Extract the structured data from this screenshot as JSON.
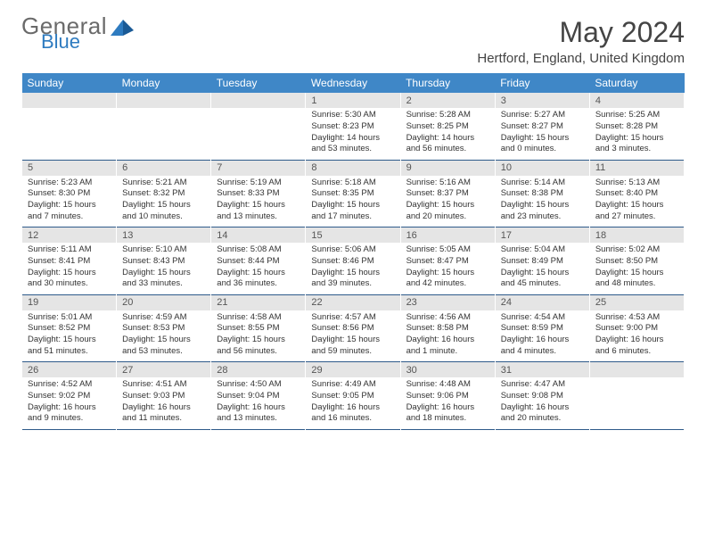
{
  "logo": {
    "word1": "General",
    "word2": "Blue"
  },
  "title": "May 2024",
  "location": "Hertford, England, United Kingdom",
  "colors": {
    "header_bg": "#3f87c7",
    "header_text": "#ffffff",
    "daynum_bg": "#e5e5e5",
    "text": "#333333",
    "logo_gray": "#6a6a6a",
    "logo_blue": "#2e7bc0",
    "rule": "#2e5a8a"
  },
  "weekdays": [
    "Sunday",
    "Monday",
    "Tuesday",
    "Wednesday",
    "Thursday",
    "Friday",
    "Saturday"
  ],
  "weeks": [
    [
      {
        "num": "",
        "sunrise": "",
        "sunset": "",
        "daylight": ""
      },
      {
        "num": "",
        "sunrise": "",
        "sunset": "",
        "daylight": ""
      },
      {
        "num": "",
        "sunrise": "",
        "sunset": "",
        "daylight": ""
      },
      {
        "num": "1",
        "sunrise": "Sunrise: 5:30 AM",
        "sunset": "Sunset: 8:23 PM",
        "daylight": "Daylight: 14 hours and 53 minutes."
      },
      {
        "num": "2",
        "sunrise": "Sunrise: 5:28 AM",
        "sunset": "Sunset: 8:25 PM",
        "daylight": "Daylight: 14 hours and 56 minutes."
      },
      {
        "num": "3",
        "sunrise": "Sunrise: 5:27 AM",
        "sunset": "Sunset: 8:27 PM",
        "daylight": "Daylight: 15 hours and 0 minutes."
      },
      {
        "num": "4",
        "sunrise": "Sunrise: 5:25 AM",
        "sunset": "Sunset: 8:28 PM",
        "daylight": "Daylight: 15 hours and 3 minutes."
      }
    ],
    [
      {
        "num": "5",
        "sunrise": "Sunrise: 5:23 AM",
        "sunset": "Sunset: 8:30 PM",
        "daylight": "Daylight: 15 hours and 7 minutes."
      },
      {
        "num": "6",
        "sunrise": "Sunrise: 5:21 AM",
        "sunset": "Sunset: 8:32 PM",
        "daylight": "Daylight: 15 hours and 10 minutes."
      },
      {
        "num": "7",
        "sunrise": "Sunrise: 5:19 AM",
        "sunset": "Sunset: 8:33 PM",
        "daylight": "Daylight: 15 hours and 13 minutes."
      },
      {
        "num": "8",
        "sunrise": "Sunrise: 5:18 AM",
        "sunset": "Sunset: 8:35 PM",
        "daylight": "Daylight: 15 hours and 17 minutes."
      },
      {
        "num": "9",
        "sunrise": "Sunrise: 5:16 AM",
        "sunset": "Sunset: 8:37 PM",
        "daylight": "Daylight: 15 hours and 20 minutes."
      },
      {
        "num": "10",
        "sunrise": "Sunrise: 5:14 AM",
        "sunset": "Sunset: 8:38 PM",
        "daylight": "Daylight: 15 hours and 23 minutes."
      },
      {
        "num": "11",
        "sunrise": "Sunrise: 5:13 AM",
        "sunset": "Sunset: 8:40 PM",
        "daylight": "Daylight: 15 hours and 27 minutes."
      }
    ],
    [
      {
        "num": "12",
        "sunrise": "Sunrise: 5:11 AM",
        "sunset": "Sunset: 8:41 PM",
        "daylight": "Daylight: 15 hours and 30 minutes."
      },
      {
        "num": "13",
        "sunrise": "Sunrise: 5:10 AM",
        "sunset": "Sunset: 8:43 PM",
        "daylight": "Daylight: 15 hours and 33 minutes."
      },
      {
        "num": "14",
        "sunrise": "Sunrise: 5:08 AM",
        "sunset": "Sunset: 8:44 PM",
        "daylight": "Daylight: 15 hours and 36 minutes."
      },
      {
        "num": "15",
        "sunrise": "Sunrise: 5:06 AM",
        "sunset": "Sunset: 8:46 PM",
        "daylight": "Daylight: 15 hours and 39 minutes."
      },
      {
        "num": "16",
        "sunrise": "Sunrise: 5:05 AM",
        "sunset": "Sunset: 8:47 PM",
        "daylight": "Daylight: 15 hours and 42 minutes."
      },
      {
        "num": "17",
        "sunrise": "Sunrise: 5:04 AM",
        "sunset": "Sunset: 8:49 PM",
        "daylight": "Daylight: 15 hours and 45 minutes."
      },
      {
        "num": "18",
        "sunrise": "Sunrise: 5:02 AM",
        "sunset": "Sunset: 8:50 PM",
        "daylight": "Daylight: 15 hours and 48 minutes."
      }
    ],
    [
      {
        "num": "19",
        "sunrise": "Sunrise: 5:01 AM",
        "sunset": "Sunset: 8:52 PM",
        "daylight": "Daylight: 15 hours and 51 minutes."
      },
      {
        "num": "20",
        "sunrise": "Sunrise: 4:59 AM",
        "sunset": "Sunset: 8:53 PM",
        "daylight": "Daylight: 15 hours and 53 minutes."
      },
      {
        "num": "21",
        "sunrise": "Sunrise: 4:58 AM",
        "sunset": "Sunset: 8:55 PM",
        "daylight": "Daylight: 15 hours and 56 minutes."
      },
      {
        "num": "22",
        "sunrise": "Sunrise: 4:57 AM",
        "sunset": "Sunset: 8:56 PM",
        "daylight": "Daylight: 15 hours and 59 minutes."
      },
      {
        "num": "23",
        "sunrise": "Sunrise: 4:56 AM",
        "sunset": "Sunset: 8:58 PM",
        "daylight": "Daylight: 16 hours and 1 minute."
      },
      {
        "num": "24",
        "sunrise": "Sunrise: 4:54 AM",
        "sunset": "Sunset: 8:59 PM",
        "daylight": "Daylight: 16 hours and 4 minutes."
      },
      {
        "num": "25",
        "sunrise": "Sunrise: 4:53 AM",
        "sunset": "Sunset: 9:00 PM",
        "daylight": "Daylight: 16 hours and 6 minutes."
      }
    ],
    [
      {
        "num": "26",
        "sunrise": "Sunrise: 4:52 AM",
        "sunset": "Sunset: 9:02 PM",
        "daylight": "Daylight: 16 hours and 9 minutes."
      },
      {
        "num": "27",
        "sunrise": "Sunrise: 4:51 AM",
        "sunset": "Sunset: 9:03 PM",
        "daylight": "Daylight: 16 hours and 11 minutes."
      },
      {
        "num": "28",
        "sunrise": "Sunrise: 4:50 AM",
        "sunset": "Sunset: 9:04 PM",
        "daylight": "Daylight: 16 hours and 13 minutes."
      },
      {
        "num": "29",
        "sunrise": "Sunrise: 4:49 AM",
        "sunset": "Sunset: 9:05 PM",
        "daylight": "Daylight: 16 hours and 16 minutes."
      },
      {
        "num": "30",
        "sunrise": "Sunrise: 4:48 AM",
        "sunset": "Sunset: 9:06 PM",
        "daylight": "Daylight: 16 hours and 18 minutes."
      },
      {
        "num": "31",
        "sunrise": "Sunrise: 4:47 AM",
        "sunset": "Sunset: 9:08 PM",
        "daylight": "Daylight: 16 hours and 20 minutes."
      },
      {
        "num": "",
        "sunrise": "",
        "sunset": "",
        "daylight": ""
      }
    ]
  ]
}
